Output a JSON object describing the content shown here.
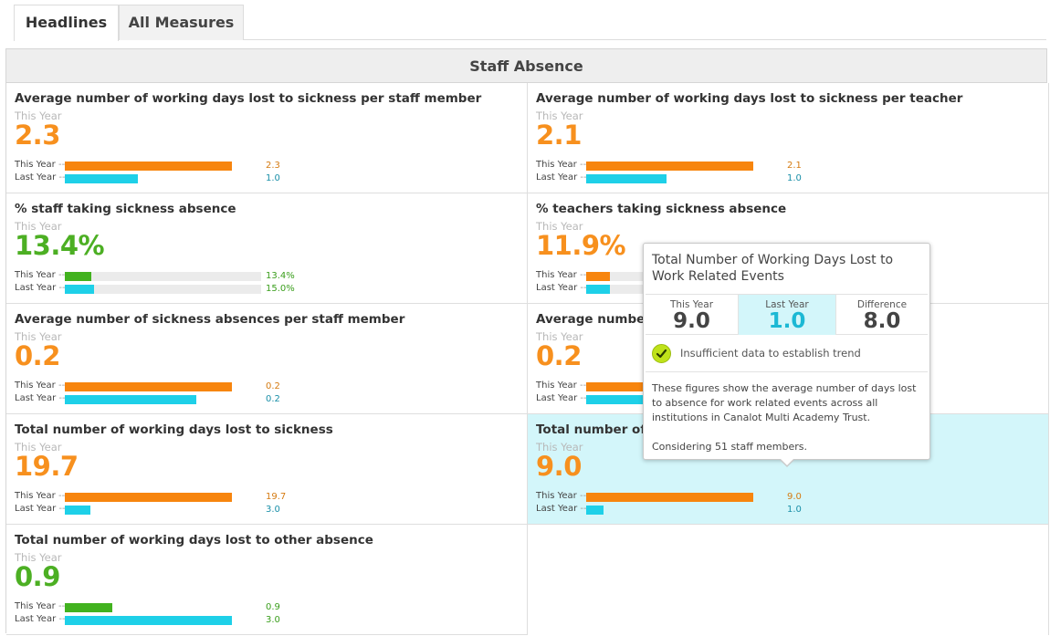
{
  "tabs": [
    {
      "label": "Headlines",
      "active": true
    },
    {
      "label": "All Measures",
      "active": false
    }
  ],
  "panel": {
    "title": "Staff Absence"
  },
  "legend": {
    "this_year": "This Year",
    "last_year": "Last Year",
    "dash": "--"
  },
  "colors": {
    "this_year_bar": "#f7850e",
    "last_year_bar": "#1ed0e8",
    "good_bar": "#42b21f",
    "highlight": "#d3f6fa"
  },
  "measures": [
    {
      "title": "Average number of working days lost to sickness per staff member",
      "sub": "This Year",
      "value": "2.3",
      "this_year": "2.3",
      "last_year": "1.0",
      "this_year_fraction": 0.85,
      "last_year_fraction": 0.37
    },
    {
      "title": "Average number of working days lost to sickness per teacher",
      "sub": "This Year",
      "value": "2.1",
      "this_year": "2.1",
      "last_year": "1.0",
      "this_year_fraction": 0.85,
      "last_year_fraction": 0.41
    },
    {
      "title": "% staff taking sickness absence",
      "sub": "This Year",
      "value": "13.4%",
      "this_year": "13.4%",
      "last_year": "15.0%",
      "this_year_fraction": 0.134,
      "last_year_fraction": 0.15
    },
    {
      "title": "% teachers taking sickness absence",
      "sub": "This Year",
      "value": "11.9%",
      "this_year": "",
      "last_year": "",
      "this_year_fraction": 0.119,
      "last_year_fraction": 0.12
    },
    {
      "title": "Average number of sickness absences per staff member",
      "sub": "This Year",
      "value": "0.2",
      "this_year": "0.2",
      "last_year": "0.2",
      "this_year_fraction": 0.85,
      "last_year_fraction": 0.67
    },
    {
      "title": "Average number o",
      "sub": "This Year",
      "value": "0.2",
      "this_year": "",
      "last_year": "",
      "this_year_fraction": 0.85,
      "last_year_fraction": 0.67
    },
    {
      "title": "Total number of working days lost to sickness",
      "sub": "This Year",
      "value": "19.7",
      "this_year": "19.7",
      "last_year": "3.0",
      "this_year_fraction": 0.85,
      "last_year_fraction": 0.13
    },
    {
      "title": "Total number of w",
      "sub": "This Year",
      "value": "9.0",
      "this_year": "9.0",
      "last_year": "1.0",
      "this_year_fraction": 0.85,
      "last_year_fraction": 0.09
    },
    {
      "title": "Total number of working days lost to other absence",
      "sub": "This Year",
      "value": "0.9",
      "this_year": "0.9",
      "last_year": "3.0",
      "this_year_fraction": 0.24,
      "last_year_fraction": 0.85
    }
  ],
  "tooltip": {
    "title": "Total Number of Working Days Lost to Work Related Events",
    "this_year_label": "This Year",
    "this_year_value": "9.0",
    "last_year_label": "Last Year",
    "last_year_value": "1.0",
    "difference_label": "Difference",
    "difference_value": "8.0",
    "trend_text": "Insufficient data to establish trend",
    "description": "These figures show the average number of days lost to absence for work related events across all institutions in Canalot Multi Academy Trust.",
    "considering": "Considering 51 staff members.",
    "check_icon": "check-icon"
  }
}
